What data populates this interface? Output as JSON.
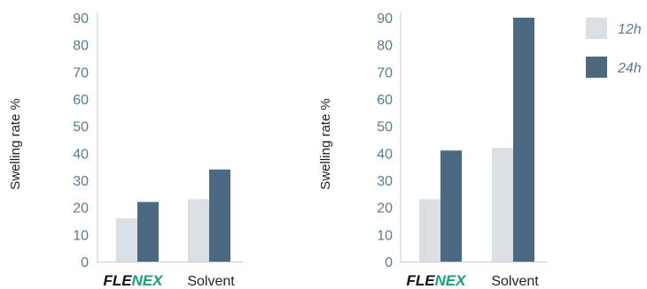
{
  "colors": {
    "series_12h": "#dadfe3",
    "series_24h": "#4b6a82",
    "tick_text": "#5a7a92",
    "axis_line": "#c5ccd2",
    "brand_dark": "#111111",
    "brand_green": "#1a9e7e"
  },
  "legend": {
    "items": [
      {
        "label": "12h",
        "color": "#dadfe3"
      },
      {
        "label": "24h",
        "color": "#4b6a82"
      }
    ]
  },
  "chart_data": [
    {
      "type": "bar",
      "ylabel": "Swelling rate %",
      "ylim": [
        0,
        90
      ],
      "yticks": [
        0,
        10,
        20,
        30,
        40,
        50,
        60,
        70,
        80,
        90
      ],
      "categories": [
        {
          "brand": true,
          "label_part1": "FLE",
          "label_part2": "NEX"
        },
        {
          "brand": false,
          "label": "Solvent"
        }
      ],
      "series": [
        {
          "name": "12h",
          "values": [
            16,
            23
          ]
        },
        {
          "name": "24h",
          "values": [
            22,
            34
          ]
        }
      ]
    },
    {
      "type": "bar",
      "ylabel": "Swelling rate %",
      "ylim": [
        0,
        90
      ],
      "yticks": [
        0,
        10,
        20,
        30,
        40,
        50,
        60,
        70,
        80,
        90
      ],
      "categories": [
        {
          "brand": true,
          "label_part1": "FLE",
          "label_part2": "NEX"
        },
        {
          "brand": false,
          "label": "Solvent"
        }
      ],
      "series": [
        {
          "name": "12h",
          "values": [
            23,
            42
          ]
        },
        {
          "name": "24h",
          "values": [
            41,
            90
          ]
        }
      ]
    }
  ]
}
